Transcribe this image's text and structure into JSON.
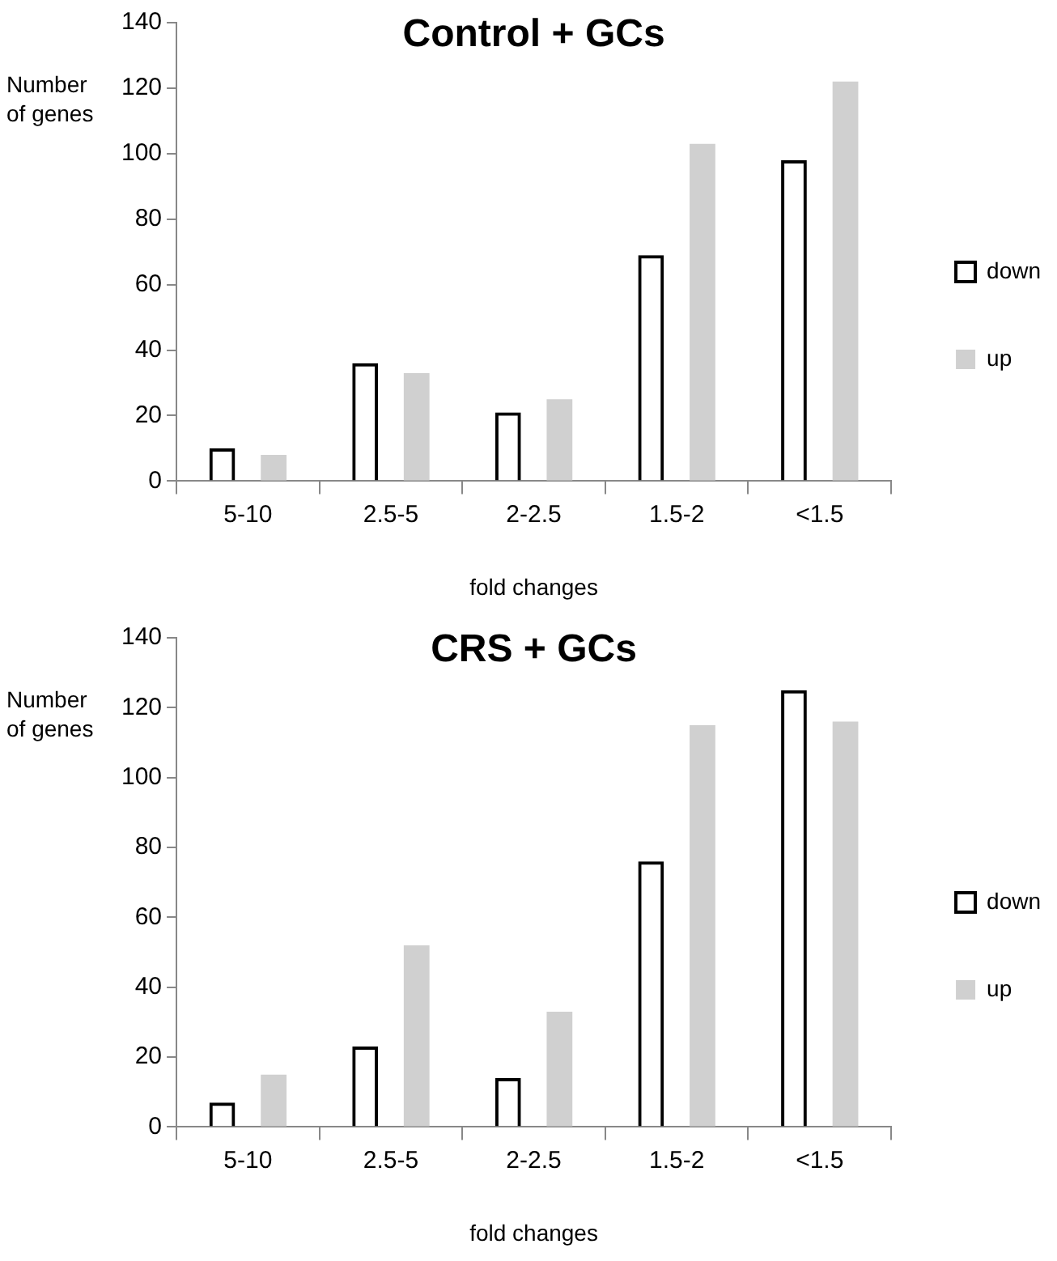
{
  "chart_data": [
    {
      "type": "bar",
      "title": "Control + GCs",
      "xlabel": "fold changes",
      "ylabel": "Number of genes",
      "categories": [
        "5-10",
        "2.5-5",
        "2-2.5",
        "1.5-2",
        "<1.5"
      ],
      "series": [
        {
          "name": "down",
          "color": "#000000",
          "values": [
            10,
            36,
            21,
            69,
            98
          ]
        },
        {
          "name": "up",
          "color": "#d0d0d0",
          "values": [
            8,
            33,
            25,
            103,
            122
          ]
        }
      ],
      "ylim": [
        0,
        140
      ],
      "yticks": [
        0,
        20,
        40,
        60,
        80,
        100,
        120,
        140
      ],
      "grid": false,
      "legend": "right"
    },
    {
      "type": "bar",
      "title": "CRS + GCs",
      "xlabel": "fold changes",
      "ylabel": "Number of genes",
      "categories": [
        "5-10",
        "2.5-5",
        "2-2.5",
        "1.5-2",
        "<1.5"
      ],
      "series": [
        {
          "name": "down",
          "color": "#000000",
          "values": [
            7,
            23,
            14,
            76,
            125
          ]
        },
        {
          "name": "up",
          "color": "#d0d0d0",
          "values": [
            15,
            52,
            33,
            115,
            116
          ]
        }
      ],
      "ylim": [
        0,
        140
      ],
      "yticks": [
        0,
        20,
        40,
        60,
        80,
        100,
        120,
        140
      ],
      "grid": false,
      "legend": "right"
    }
  ]
}
